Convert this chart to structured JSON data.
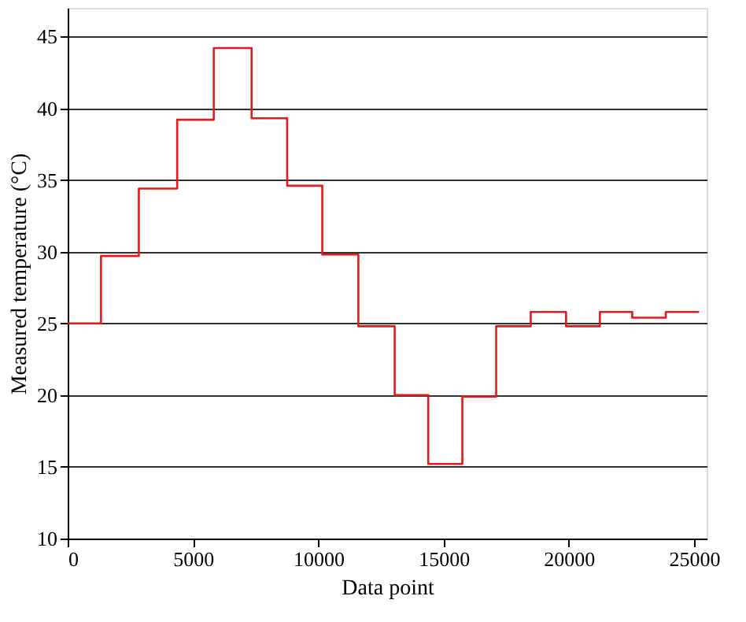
{
  "chart_data": {
    "type": "step",
    "xlabel": "Data point",
    "ylabel": "Measured temperature (°C)",
    "x": [
      0,
      1330,
      2840,
      4370,
      5830,
      7340,
      8760,
      10160,
      11600,
      13050,
      14390,
      15750,
      17100,
      18480,
      19890,
      21240,
      22530,
      23870,
      25200
    ],
    "series": [
      {
        "color": "#e31a1c",
        "values": [
          25.0,
          29.7,
          34.4,
          39.2,
          44.2,
          39.3,
          34.6,
          29.8,
          24.8,
          20.0,
          15.2,
          19.9,
          24.8,
          25.8,
          24.8,
          25.8,
          25.4,
          25.8,
          25.8
        ]
      }
    ],
    "xlim": [
      0,
      25500
    ],
    "xticks": [
      0,
      5000,
      10000,
      15000,
      20000,
      25000
    ],
    "ylim": [
      10,
      47
    ],
    "yticks": [
      10,
      15,
      20,
      25,
      30,
      35,
      40,
      45
    ],
    "grid": "y",
    "legend": false,
    "marker": "none",
    "line_style": "solid"
  }
}
